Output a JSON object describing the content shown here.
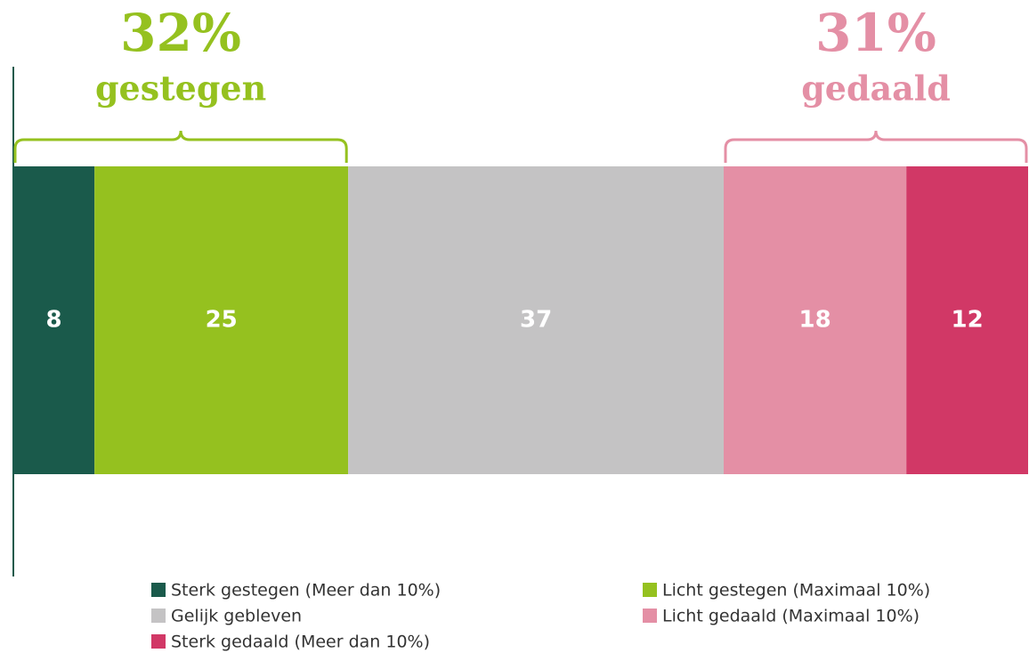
{
  "chart_data": {
    "type": "bar",
    "stacked": true,
    "orientation": "horizontal",
    "categories": [
      null
    ],
    "xlim": [
      0,
      100
    ],
    "series": [
      {
        "name": "Sterk gestegen (Meer dan 10%)",
        "color": "#1a5a4b",
        "values": [
          8
        ]
      },
      {
        "name": "Licht gestegen (Maximaal 10%)",
        "color": "#95c11f",
        "values": [
          25
        ]
      },
      {
        "name": "Gelijk gebleven",
        "color": "#c4c3c4",
        "values": [
          37
        ]
      },
      {
        "name": "Licht gedaald (Maximaal 10%)",
        "color": "#e48fa5",
        "values": [
          18
        ]
      },
      {
        "name": "Sterk gedaald (Meer dan 10%)",
        "color": "#d13866",
        "values": [
          12
        ]
      }
    ],
    "annotations": [
      {
        "text": "32%",
        "subtext": "gestegen",
        "color": "#95c11f"
      },
      {
        "text": "31%",
        "subtext": "gedaald",
        "color": "#e48fa5"
      }
    ]
  }
}
